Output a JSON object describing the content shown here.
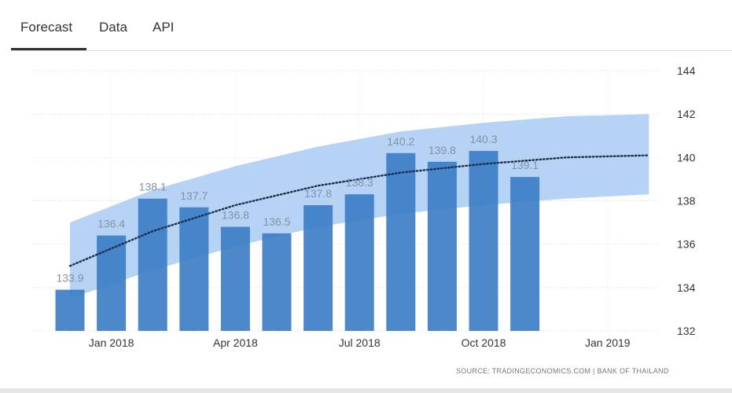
{
  "tabs": [
    {
      "label": "Forecast",
      "active": true
    },
    {
      "label": "Data",
      "active": false
    },
    {
      "label": "API",
      "active": false
    }
  ],
  "chart_data": {
    "type": "bar",
    "title": "",
    "xlabel": "",
    "ylabel": "",
    "x_tick_labels": [
      "Jan 2018",
      "Apr 2018",
      "Jul 2018",
      "Oct 2018",
      "Jan 2019"
    ],
    "y_ticks": [
      132,
      134,
      136,
      138,
      140,
      142,
      144
    ],
    "ylim": [
      132,
      144
    ],
    "grid": true,
    "y_axis_side": "right",
    "series": [
      {
        "categories": [
          "Dec 2017",
          "Jan 2018",
          "Feb 2018",
          "Mar 2018",
          "Apr 2018",
          "May 2018",
          "Jun 2018",
          "Jul 2018",
          "Aug 2018",
          "Sep 2018",
          "Oct 2018",
          "Nov 2018"
        ],
        "values": [
          133.9,
          136.4,
          138.1,
          137.7,
          136.8,
          136.5,
          137.8,
          138.3,
          140.2,
          139.8,
          140.3,
          139.1
        ],
        "data_labels": [
          "133.9",
          "136.4",
          "138.1",
          "137.7",
          "136.8",
          "136.5",
          "137.8",
          "138.3",
          "140.2",
          "139.8",
          "140.3",
          "139.1"
        ],
        "color": "#3d7ec5"
      }
    ],
    "forecast_trend": {
      "style": "dotted",
      "color": "#1a2f4e",
      "x": [
        "Dec 2017",
        "Feb 2018",
        "Apr 2018",
        "Jun 2018",
        "Aug 2018",
        "Oct 2018",
        "Dec 2018",
        "Feb 2019"
      ],
      "y": [
        135.0,
        136.6,
        137.8,
        138.7,
        139.3,
        139.7,
        140.0,
        140.1
      ]
    },
    "forecast_band": {
      "color": "#aecdf3",
      "x": [
        "Dec 2017",
        "Feb 2018",
        "Apr 2018",
        "Jun 2018",
        "Aug 2018",
        "Oct 2018",
        "Dec 2018",
        "Feb 2019"
      ],
      "upper": [
        137.0,
        138.5,
        139.6,
        140.5,
        141.2,
        141.6,
        141.9,
        142.0
      ],
      "lower": [
        133.5,
        134.8,
        135.9,
        136.8,
        137.4,
        137.8,
        138.1,
        138.3
      ]
    },
    "source": "SOURCE: TRADINGECONOMICS.COM | BANK OF THAILAND"
  }
}
